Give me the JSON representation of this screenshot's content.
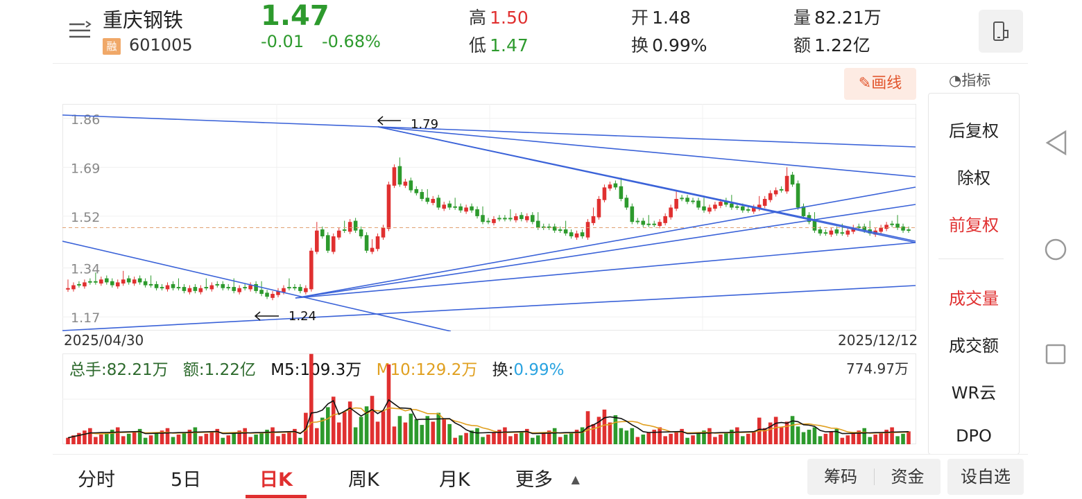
{
  "header": {
    "stock_name": "重庆钢铁",
    "margin_badge": "融",
    "stock_code": "601005",
    "price": "1.47",
    "change": "-0.01",
    "change_pct": "-0.68%",
    "high_label": "高",
    "high": "1.50",
    "low_label": "低",
    "low": "1.47",
    "open_label": "开",
    "open": "1.48",
    "turnover_label": "换",
    "turnover": "0.99%",
    "volume_label": "量",
    "volume": "82.21万",
    "amount_label": "额",
    "amount": "1.22亿"
  },
  "toolbar": {
    "draw_label": "画线",
    "indicator_label": "指标"
  },
  "side_menu": {
    "items": [
      "后复权",
      "除权",
      "前复权",
      "成交量",
      "成交额",
      "WR云",
      "DPO"
    ],
    "active": [
      "前复权",
      "成交量"
    ]
  },
  "kline": {
    "y_ticks": [
      "1.86",
      "1.69",
      "1.52",
      "1.34",
      "1.17"
    ],
    "start_date": "2025/04/30",
    "end_date": "2025/12/12",
    "annotations": {
      "high_mark": "1.79",
      "low_mark": "1.24"
    }
  },
  "volume_bar": {
    "total_label": "总手:",
    "total": "82.21万",
    "amount_label": "额:",
    "amount": "1.22亿",
    "m5_label": "M5:",
    "m5": "109.3万",
    "m10_label": "M10:",
    "m10": "129.2万",
    "turn_label": "换:",
    "turn": "0.99%",
    "max": "774.97万"
  },
  "tabs": [
    "分时",
    "5日",
    "日K",
    "周K",
    "月K",
    "更多"
  ],
  "active_tab": "日K",
  "bottom_buttons": {
    "chips": "筹码",
    "funds": "资金",
    "add_watch": "设自选"
  },
  "colors": {
    "up": "#e03030",
    "down": "#2d9a2d",
    "trendline": "#3a62d8",
    "m5": "#111111",
    "m10": "#e0a020",
    "accent": "#e2552c"
  },
  "chart_data": {
    "type": "candlestick",
    "ylim": [
      1.17,
      1.86
    ],
    "close_series_approx": [
      1.27,
      1.28,
      1.28,
      1.29,
      1.29,
      1.29,
      1.3,
      1.29,
      1.28,
      1.29,
      1.3,
      1.29,
      1.3,
      1.29,
      1.28,
      1.28,
      1.27,
      1.27,
      1.28,
      1.27,
      1.27,
      1.26,
      1.27,
      1.26,
      1.27,
      1.27,
      1.28,
      1.28,
      1.27,
      1.27,
      1.26,
      1.27,
      1.27,
      1.28,
      1.26,
      1.25,
      1.24,
      1.25,
      1.26,
      1.27,
      1.27,
      1.27,
      1.26,
      1.27,
      1.4,
      1.47,
      1.45,
      1.4,
      1.45,
      1.47,
      1.47,
      1.5,
      1.47,
      1.45,
      1.4,
      1.41,
      1.45,
      1.48,
      1.63,
      1.69,
      1.63,
      1.64,
      1.61,
      1.6,
      1.58,
      1.57,
      1.58,
      1.55,
      1.56,
      1.55,
      1.55,
      1.54,
      1.55,
      1.54,
      1.52,
      1.5,
      1.5,
      1.51,
      1.51,
      1.51,
      1.51,
      1.52,
      1.51,
      1.52,
      1.5,
      1.48,
      1.48,
      1.48,
      1.47,
      1.47,
      1.46,
      1.45,
      1.46,
      1.45,
      1.5,
      1.52,
      1.58,
      1.62,
      1.63,
      1.62,
      1.58,
      1.55,
      1.5,
      1.5,
      1.49,
      1.49,
      1.49,
      1.5,
      1.52,
      1.55,
      1.58,
      1.58,
      1.57,
      1.57,
      1.55,
      1.54,
      1.55,
      1.56,
      1.57,
      1.56,
      1.55,
      1.55,
      1.54,
      1.54,
      1.55,
      1.56,
      1.58,
      1.6,
      1.61,
      1.61,
      1.66,
      1.63,
      1.55,
      1.52,
      1.5,
      1.47,
      1.46,
      1.46,
      1.47,
      1.46,
      1.46,
      1.47,
      1.48,
      1.48,
      1.47,
      1.46,
      1.47,
      1.48,
      1.49,
      1.49,
      1.48,
      1.47,
      1.47
    ]
  }
}
